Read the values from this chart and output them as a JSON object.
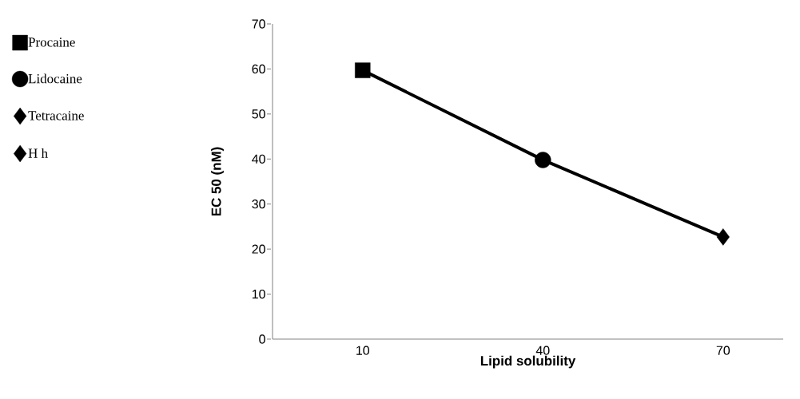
{
  "chart_data": {
    "type": "line",
    "xlabel": "Lipid solubility",
    "ylabel": "EC 50 (nM)",
    "x": [
      10,
      40,
      70
    ],
    "xlim": [
      -5,
      80
    ],
    "xticks": [
      10,
      40,
      70
    ],
    "ylim": [
      0,
      70
    ],
    "yticks": [
      0,
      10,
      20,
      30,
      40,
      50,
      60,
      70
    ],
    "series": [
      {
        "color": "#000000",
        "values": [
          59.7,
          39.8,
          22.7
        ],
        "marker": "none",
        "line_style": "solid"
      },
      {
        "name": "Procaine",
        "type": "scatter",
        "color": "#000000",
        "marker": "square",
        "values": [
          59.7,
          null,
          null
        ]
      },
      {
        "name": "Lidocaine",
        "type": "scatter",
        "color": "#000000",
        "marker": "circle",
        "values": [
          null,
          39.8,
          null
        ]
      },
      {
        "name": "Tetracaine",
        "type": "scatter",
        "color": "#000000",
        "marker": "diamond",
        "values": [
          null,
          null,
          22.7
        ]
      },
      {
        "name": "H h",
        "type": "scatter",
        "color": "#000000",
        "marker": "diamond",
        "values": [
          null,
          null,
          null
        ]
      }
    ],
    "grid": false,
    "legend": "left"
  }
}
